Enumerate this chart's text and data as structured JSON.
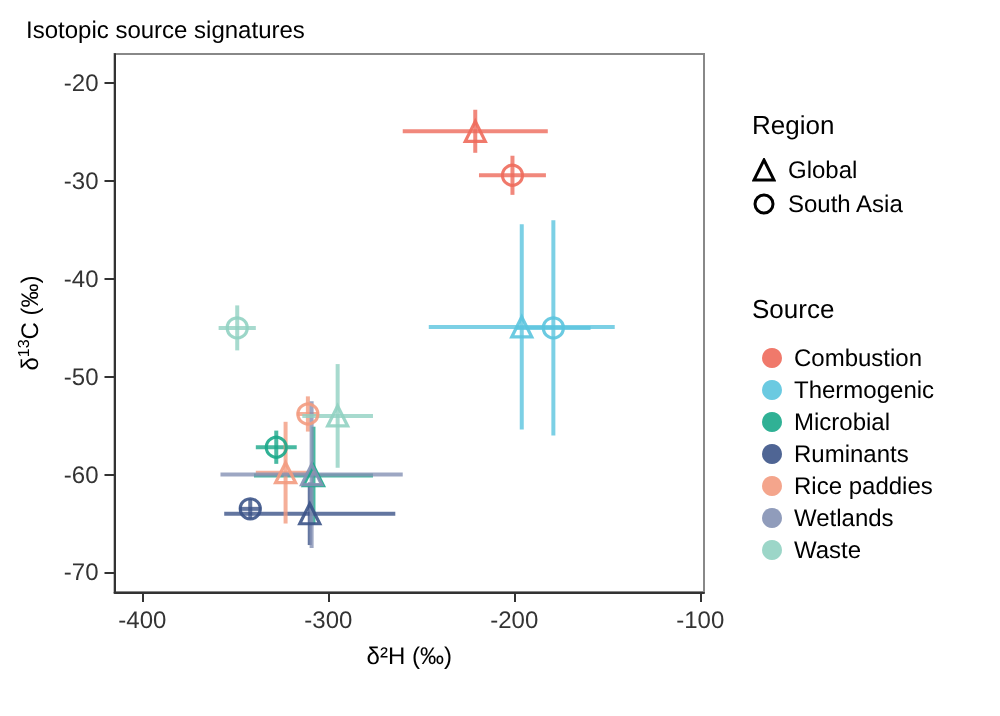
{
  "chart_data": {
    "type": "scatter",
    "title": "Isotopic source signatures",
    "xlabel": "δ²H (‰)",
    "ylabel": "δ$^{13}$C (‰)",
    "legend_title": [
      "Region",
      "Source"
    ],
    "annotations": [
      "Global",
      "South Asia"
    ],
    "xlim": [
      -415,
      -98
    ],
    "xticks": [
      -400,
      -300,
      -200,
      -100
    ],
    "ylim": [
      -72,
      -17
    ],
    "yticks": [
      -70,
      -60,
      -50,
      -40,
      -30,
      -20
    ],
    "grid": false,
    "legend": "right",
    "series": [
      {
        "name": "Combustion",
        "color": "#ee6a5b",
        "marker": [
          "triangle",
          "circle"
        ],
        "x": [
          -221,
          -201
        ],
        "values": [
          -24.9,
          -29.4
        ],
        "errors": [
          2.2,
          2
        ],
        "xerrors": [
          39,
          18
        ]
      },
      {
        "name": "Thermogenic",
        "color": "#5bc4de",
        "marker": [
          "triangle",
          "circle"
        ],
        "x": [
          -196,
          -179
        ],
        "values": [
          -44.9,
          -45
        ],
        "errors": [
          10.5,
          11
        ],
        "xerrors": [
          50,
          20
        ]
      },
      {
        "name": "Microbial",
        "color": "#1aa88a",
        "marker": [
          "triangle",
          "circle"
        ],
        "x": [
          -308,
          -328
        ],
        "values": [
          -60.1,
          -57.2
        ],
        "errors": [
          5,
          1.7
        ],
        "xerrors": [
          32,
          11
        ]
      },
      {
        "name": "Ruminants",
        "color": "#3c5488",
        "marker": [
          "triangle",
          "circle"
        ],
        "x": [
          -310,
          -342
        ],
        "values": [
          -64,
          -63.5
        ],
        "errors": [
          3.2,
          1
        ],
        "xerrors": [
          46,
          6
        ]
      },
      {
        "name": "Rice paddies",
        "color": "#f39b7f",
        "marker": [
          "triangle",
          "circle"
        ],
        "x": [
          -323,
          -311
        ],
        "values": [
          -59.8,
          -53.8
        ],
        "errors": [
          5.2,
          1.8
        ],
        "xerrors": [
          16,
          6
        ]
      },
      {
        "name": "Wetlands",
        "color": "#8491b4",
        "marker": [
          "triangle"
        ],
        "x": [
          -309
        ],
        "values": [
          -60
        ],
        "errors": [
          7.5
        ],
        "xerrors": [
          49
        ]
      },
      {
        "name": "Waste",
        "color": "#91d1c2",
        "marker": [
          "triangle",
          "circle"
        ],
        "x": [
          -295,
          -349
        ],
        "values": [
          -54,
          -45
        ],
        "errors": [
          5.3,
          2.3
        ],
        "xerrors": [
          19,
          10
        ]
      }
    ]
  }
}
